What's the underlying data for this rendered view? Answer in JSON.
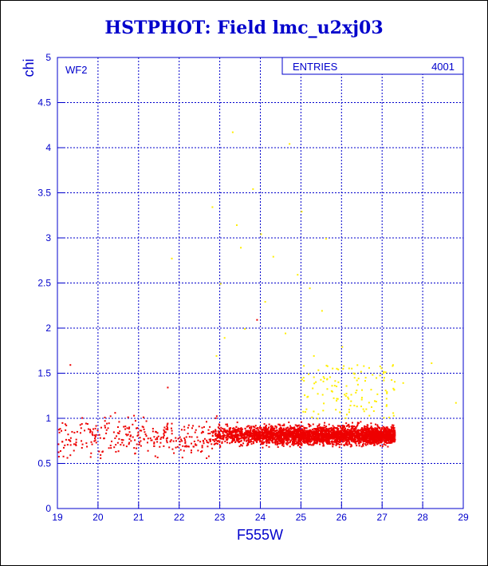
{
  "chart_data": {
    "type": "scatter",
    "title": "HSTPHOT: Field lmc_u2xj03",
    "xlabel": "F555W",
    "ylabel": "chi",
    "xlim": [
      19,
      29
    ],
    "ylim": [
      0,
      5
    ],
    "xticks": [
      "19",
      "20",
      "21",
      "22",
      "23",
      "24",
      "25",
      "26",
      "27",
      "28",
      "29"
    ],
    "yticks": [
      "0",
      "0.5",
      "1",
      "1.5",
      "2",
      "2.5",
      "3",
      "3.5",
      "4",
      "4.5",
      "5"
    ],
    "grid": true,
    "panel_label": "WF2",
    "stats_box": {
      "label": "ENTRIES",
      "value": "4001"
    },
    "colors": {
      "axis": "#0000cc",
      "main": "#ee0000",
      "outlier": "#ffee00"
    },
    "series": [
      {
        "color": "#ee0000",
        "note_points": "approx 4000 points; dense band chi 0.6-1.05 for F555W 22.8-27.3, sparse scatter to 19",
        "points": [
          [
            19.1,
            0.75
          ],
          [
            19.3,
            0.6
          ],
          [
            19.4,
            0.85
          ],
          [
            19.6,
            0.72
          ],
          [
            19.8,
            0.58
          ],
          [
            19.9,
            0.82
          ],
          [
            20.2,
            0.95
          ],
          [
            20.3,
            0.68
          ],
          [
            20.5,
            0.78
          ],
          [
            20.7,
            0.9
          ],
          [
            20.9,
            0.62
          ],
          [
            21.1,
            1.02
          ],
          [
            21.2,
            0.74
          ],
          [
            21.4,
            0.86
          ],
          [
            21.6,
            0.7
          ],
          [
            21.8,
            0.95
          ],
          [
            22.0,
            0.8
          ],
          [
            22.1,
            0.65
          ],
          [
            22.3,
            0.9
          ],
          [
            22.5,
            0.75
          ],
          [
            22.7,
            0.84
          ],
          [
            19.3,
            1.6
          ],
          [
            21.7,
            1.35
          ],
          [
            23.9,
            2.1
          ]
        ]
      },
      {
        "color": "#ffee00",
        "points": [
          [
            23.3,
            4.18
          ],
          [
            24.7,
            4.05
          ],
          [
            23.8,
            3.55
          ],
          [
            22.8,
            3.35
          ],
          [
            25.0,
            3.3
          ],
          [
            23.4,
            3.15
          ],
          [
            24.0,
            3.05
          ],
          [
            25.6,
            3.0
          ],
          [
            23.5,
            2.9
          ],
          [
            24.3,
            2.8
          ],
          [
            24.9,
            2.6
          ],
          [
            23.0,
            2.5
          ],
          [
            25.2,
            2.45
          ],
          [
            24.1,
            2.3
          ],
          [
            25.5,
            2.2
          ],
          [
            23.6,
            2.0
          ],
          [
            24.6,
            1.95
          ],
          [
            26.0,
            1.8
          ],
          [
            22.9,
            1.7
          ],
          [
            25.9,
            1.55
          ],
          [
            26.4,
            1.45
          ],
          [
            27.1,
            1.3
          ],
          [
            26.8,
            1.2
          ],
          [
            28.2,
            1.62
          ],
          [
            28.8,
            1.18
          ],
          [
            21.8,
            2.78
          ],
          [
            27.5,
            1.4
          ],
          [
            26.2,
            1.15
          ],
          [
            23.1,
            1.9
          ],
          [
            25.3,
            1.7
          ]
        ]
      }
    ]
  }
}
